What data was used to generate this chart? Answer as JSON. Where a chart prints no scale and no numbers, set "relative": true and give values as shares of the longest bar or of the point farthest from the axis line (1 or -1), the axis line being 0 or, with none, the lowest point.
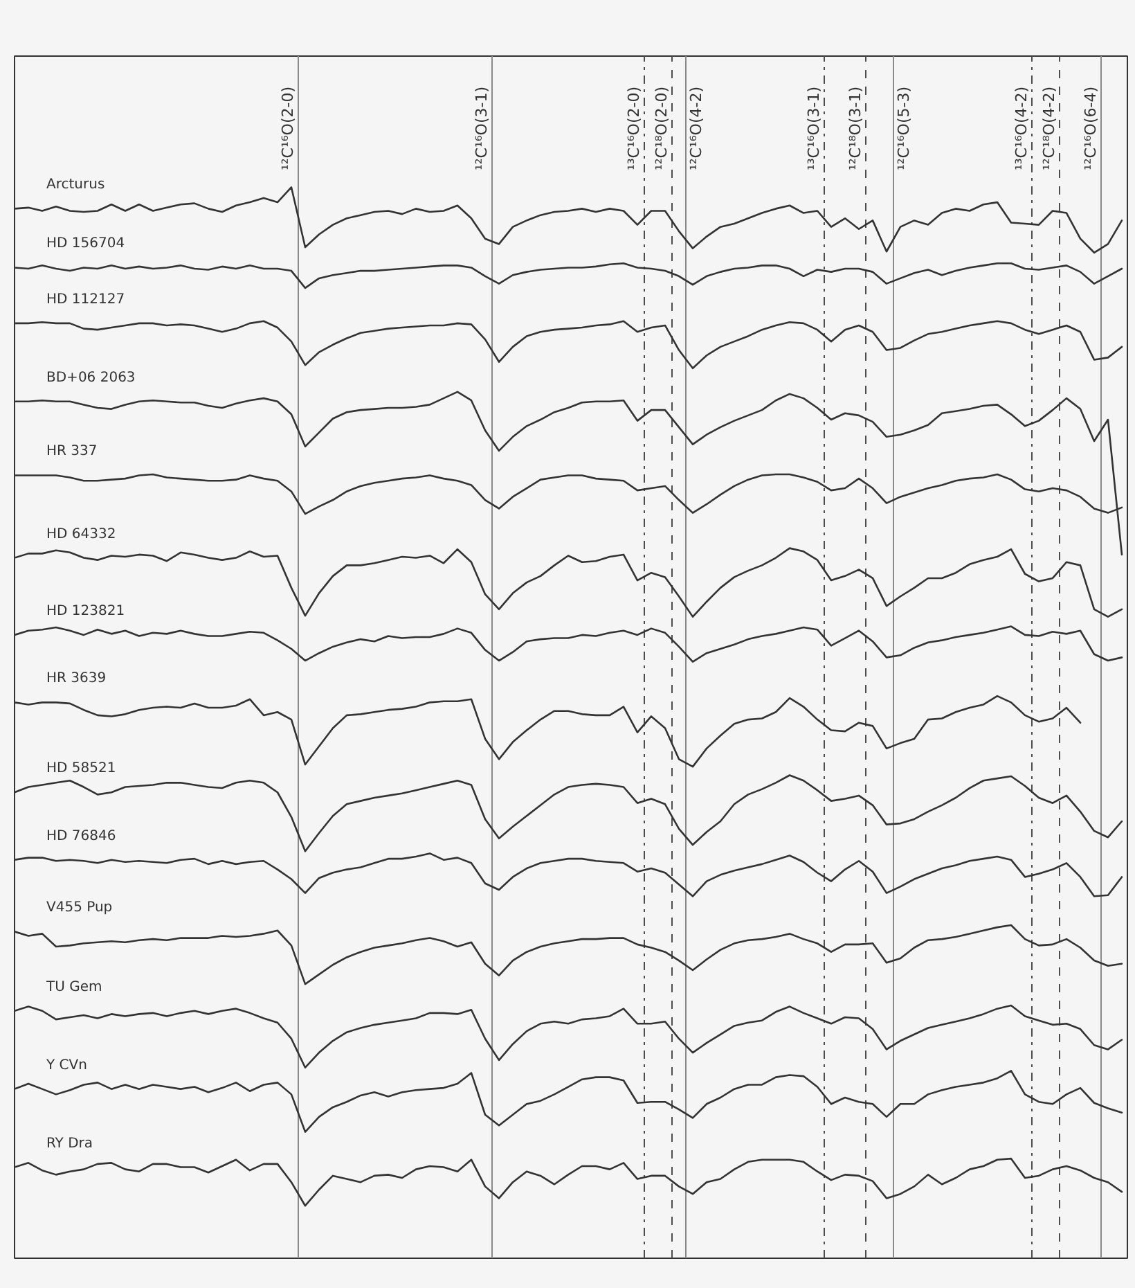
{
  "chart_data": {
    "type": "line",
    "relative": true,
    "grid": false,
    "line_style": "solid",
    "categories": [
      null,
      null,
      null,
      null,
      null,
      null,
      null,
      null,
      null,
      null,
      null,
      null,
      null,
      null,
      null,
      null,
      null,
      null,
      null,
      null,
      null,
      null,
      null,
      null,
      null,
      null,
      null,
      null,
      null,
      null,
      null,
      null,
      null,
      null,
      null,
      null,
      null,
      null,
      null,
      null,
      null,
      null,
      null,
      null,
      null,
      null,
      null,
      null,
      null,
      null,
      null,
      null,
      null,
      null,
      null,
      null,
      null,
      null,
      null,
      null,
      null,
      null,
      null,
      null,
      null,
      null,
      null,
      null,
      null,
      null,
      null,
      null,
      null,
      null,
      null,
      null,
      null,
      null,
      null,
      null,
      null
    ],
    "series": [
      {
        "name": "Arcturus",
        "color": "#333333",
        "values": [
          0.98,
          0.981,
          0.978,
          0.982,
          0.978,
          0.977,
          0.978,
          0.984,
          0.978,
          0.984,
          0.978,
          0.981,
          0.984,
          0.985,
          0.98,
          0.977,
          0.983,
          0.986,
          0.99,
          0.986,
          1.0,
          0.944,
          0.956,
          0.965,
          0.971,
          0.974,
          0.977,
          0.978,
          0.975,
          0.98,
          0.977,
          0.978,
          0.983,
          0.971,
          0.952,
          0.947,
          0.963,
          0.969,
          0.974,
          0.977,
          0.978,
          0.98,
          0.977,
          0.98,
          0.978,
          0.965,
          0.978,
          0.978,
          0.959,
          0.943,
          0.954,
          0.963,
          0.966,
          0.971,
          0.976,
          0.98,
          0.983,
          0.976,
          0.978,
          0.963,
          0.971,
          0.961,
          0.969,
          0.94,
          0.963,
          0.969,
          0.965,
          0.976,
          0.98,
          0.978,
          0.984,
          0.986,
          0.967,
          0.966,
          0.965,
          0.978,
          0.976,
          0.952,
          0.939,
          0.947,
          0.969
        ]
      },
      {
        "name": "HD 156704",
        "color": "#333333",
        "values": [
          0.925,
          0.924,
          0.927,
          0.924,
          0.922,
          0.925,
          0.924,
          0.927,
          0.924,
          0.926,
          0.924,
          0.925,
          0.927,
          0.924,
          0.923,
          0.926,
          0.924,
          0.927,
          0.924,
          0.924,
          0.922,
          0.906,
          0.915,
          0.918,
          0.92,
          0.922,
          0.922,
          0.923,
          0.924,
          0.925,
          0.926,
          0.927,
          0.927,
          0.925,
          0.917,
          0.91,
          0.918,
          0.921,
          0.923,
          0.924,
          0.925,
          0.925,
          0.926,
          0.928,
          0.929,
          0.925,
          0.924,
          0.922,
          0.917,
          0.909,
          0.917,
          0.921,
          0.924,
          0.925,
          0.927,
          0.927,
          0.924,
          0.917,
          0.923,
          0.921,
          0.924,
          0.924,
          0.921,
          0.91,
          0.915,
          0.92,
          0.923,
          0.918,
          0.922,
          0.925,
          0.927,
          0.929,
          0.929,
          0.924,
          0.923,
          0.925,
          0.927,
          0.921,
          0.91,
          0.917,
          0.924
        ]
      },
      {
        "name": "HD 112127",
        "color": "#333333",
        "values": [
          0.873,
          0.873,
          0.874,
          0.873,
          0.873,
          0.868,
          0.867,
          0.869,
          0.871,
          0.873,
          0.873,
          0.871,
          0.872,
          0.871,
          0.868,
          0.865,
          0.868,
          0.873,
          0.875,
          0.869,
          0.856,
          0.834,
          0.846,
          0.853,
          0.859,
          0.864,
          0.866,
          0.868,
          0.869,
          0.87,
          0.871,
          0.871,
          0.873,
          0.872,
          0.858,
          0.837,
          0.851,
          0.861,
          0.865,
          0.867,
          0.868,
          0.869,
          0.871,
          0.872,
          0.875,
          0.865,
          0.869,
          0.871,
          0.848,
          0.831,
          0.843,
          0.851,
          0.856,
          0.861,
          0.867,
          0.871,
          0.874,
          0.873,
          0.867,
          0.856,
          0.867,
          0.871,
          0.865,
          0.848,
          0.85,
          0.857,
          0.863,
          0.865,
          0.868,
          0.871,
          0.873,
          0.875,
          0.873,
          0.867,
          0.863,
          0.867,
          0.871,
          0.865,
          0.839,
          0.841,
          0.851
        ]
      },
      {
        "name": "BD+06 2063",
        "color": "#333333",
        "values": [
          0.8,
          0.8,
          0.801,
          0.8,
          0.8,
          0.797,
          0.794,
          0.793,
          0.797,
          0.8,
          0.801,
          0.8,
          0.799,
          0.799,
          0.796,
          0.794,
          0.798,
          0.801,
          0.803,
          0.8,
          0.788,
          0.758,
          0.771,
          0.784,
          0.79,
          0.792,
          0.793,
          0.794,
          0.794,
          0.795,
          0.797,
          0.803,
          0.809,
          0.801,
          0.773,
          0.754,
          0.767,
          0.777,
          0.783,
          0.79,
          0.794,
          0.799,
          0.8,
          0.8,
          0.801,
          0.782,
          0.792,
          0.792,
          0.776,
          0.76,
          0.769,
          0.776,
          0.782,
          0.787,
          0.792,
          0.801,
          0.807,
          0.803,
          0.794,
          0.783,
          0.789,
          0.787,
          0.781,
          0.767,
          0.769,
          0.773,
          0.778,
          0.789,
          0.791,
          0.793,
          0.796,
          0.797,
          0.788,
          0.777,
          0.782,
          0.792,
          0.803,
          0.793,
          0.763,
          0.783,
          0.657
        ]
      },
      {
        "name": "HR 337",
        "color": "#333333",
        "values": [
          0.731,
          0.731,
          0.731,
          0.731,
          0.729,
          0.726,
          0.726,
          0.727,
          0.728,
          0.731,
          0.732,
          0.729,
          0.728,
          0.727,
          0.726,
          0.726,
          0.727,
          0.731,
          0.728,
          0.726,
          0.716,
          0.695,
          0.702,
          0.708,
          0.716,
          0.721,
          0.724,
          0.726,
          0.728,
          0.729,
          0.731,
          0.728,
          0.726,
          0.722,
          0.708,
          0.7,
          0.711,
          0.719,
          0.727,
          0.729,
          0.731,
          0.731,
          0.728,
          0.727,
          0.726,
          0.717,
          0.719,
          0.721,
          0.708,
          0.696,
          0.704,
          0.713,
          0.721,
          0.727,
          0.731,
          0.732,
          0.732,
          0.729,
          0.725,
          0.717,
          0.719,
          0.728,
          0.719,
          0.705,
          0.711,
          0.715,
          0.719,
          0.722,
          0.726,
          0.728,
          0.729,
          0.732,
          0.727,
          0.718,
          0.716,
          0.719,
          0.717,
          0.711,
          0.7,
          0.696,
          0.701
        ]
      },
      {
        "name": "HD 64332",
        "color": "#333333",
        "values": [
          0.654,
          0.658,
          0.658,
          0.661,
          0.659,
          0.654,
          0.652,
          0.656,
          0.655,
          0.657,
          0.656,
          0.651,
          0.659,
          0.657,
          0.654,
          0.652,
          0.654,
          0.66,
          0.655,
          0.656,
          0.626,
          0.6,
          0.621,
          0.637,
          0.647,
          0.647,
          0.649,
          0.652,
          0.655,
          0.654,
          0.656,
          0.649,
          0.662,
          0.65,
          0.62,
          0.606,
          0.621,
          0.631,
          0.637,
          0.647,
          0.656,
          0.65,
          0.651,
          0.655,
          0.657,
          0.633,
          0.64,
          0.636,
          0.618,
          0.599,
          0.613,
          0.626,
          0.636,
          0.642,
          0.647,
          0.654,
          0.663,
          0.66,
          0.652,
          0.633,
          0.637,
          0.643,
          0.635,
          0.609,
          0.618,
          0.626,
          0.635,
          0.635,
          0.64,
          0.648,
          0.652,
          0.655,
          0.662,
          0.639,
          0.632,
          0.635,
          0.65,
          0.647,
          0.606,
          0.599,
          0.606
        ]
      },
      {
        "name": "HD 123821",
        "color": "#333333",
        "values": [
          0.582,
          0.586,
          0.587,
          0.589,
          0.586,
          0.582,
          0.587,
          0.583,
          0.586,
          0.581,
          0.584,
          0.583,
          0.586,
          0.583,
          0.581,
          0.581,
          0.583,
          0.585,
          0.584,
          0.577,
          0.569,
          0.558,
          0.565,
          0.571,
          0.575,
          0.578,
          0.576,
          0.581,
          0.579,
          0.58,
          0.58,
          0.583,
          0.588,
          0.584,
          0.568,
          0.558,
          0.566,
          0.576,
          0.578,
          0.579,
          0.579,
          0.582,
          0.581,
          0.584,
          0.586,
          0.582,
          0.588,
          0.584,
          0.571,
          0.557,
          0.565,
          0.569,
          0.573,
          0.578,
          0.581,
          0.583,
          0.586,
          0.589,
          0.587,
          0.572,
          0.579,
          0.586,
          0.576,
          0.561,
          0.563,
          0.57,
          0.575,
          0.577,
          0.58,
          0.582,
          0.584,
          0.587,
          0.59,
          0.582,
          0.581,
          0.585,
          0.583,
          0.586,
          0.564,
          0.558,
          0.561
        ]
      },
      {
        "name": "HR 3639",
        "color": "#333333",
        "values": [
          0.519,
          0.517,
          0.519,
          0.519,
          0.518,
          0.512,
          0.507,
          0.506,
          0.508,
          0.512,
          0.514,
          0.515,
          0.514,
          0.518,
          0.514,
          0.514,
          0.516,
          0.522,
          0.507,
          0.51,
          0.503,
          0.461,
          0.478,
          0.495,
          0.507,
          0.508,
          0.51,
          0.512,
          0.513,
          0.515,
          0.519,
          0.52,
          0.52,
          0.522,
          0.485,
          0.466,
          0.482,
          0.493,
          0.503,
          0.511,
          0.511,
          0.508,
          0.507,
          0.507,
          0.515,
          0.491,
          0.506,
          0.495,
          0.466,
          0.459,
          0.476,
          0.488,
          0.499,
          0.503,
          0.504,
          0.51,
          0.523,
          0.515,
          0.503,
          0.493,
          0.492,
          0.5,
          0.497,
          0.476,
          0.481,
          0.485,
          0.503,
          0.504,
          0.51,
          0.514,
          0.517,
          0.525,
          0.519,
          0.507,
          0.501,
          0.504,
          0.514,
          0.5,
          null,
          null,
          null
        ]
      },
      {
        "name": "HD 58521",
        "color": "#333333",
        "values": [
          0.435,
          0.44,
          0.442,
          0.444,
          0.446,
          0.44,
          0.433,
          0.435,
          0.44,
          0.441,
          0.442,
          0.444,
          0.444,
          0.442,
          0.44,
          0.439,
          0.444,
          0.446,
          0.444,
          0.435,
          0.412,
          0.38,
          0.397,
          0.413,
          0.424,
          0.427,
          0.43,
          0.432,
          0.434,
          0.437,
          0.44,
          0.443,
          0.446,
          0.442,
          0.41,
          0.392,
          0.403,
          0.413,
          0.423,
          0.433,
          0.44,
          0.442,
          0.443,
          0.442,
          0.44,
          0.425,
          0.429,
          0.424,
          0.401,
          0.386,
          0.398,
          0.408,
          0.424,
          0.433,
          0.438,
          0.444,
          0.451,
          0.446,
          0.437,
          0.427,
          0.429,
          0.432,
          0.423,
          0.405,
          0.406,
          0.41,
          0.417,
          0.423,
          0.43,
          0.439,
          0.446,
          0.448,
          0.45,
          0.441,
          0.43,
          0.425,
          0.432,
          0.417,
          0.399,
          0.393,
          0.408
        ]
      },
      {
        "name": "HD 76846",
        "color": "#333333",
        "values": [
          0.372,
          0.374,
          0.374,
          0.371,
          0.372,
          0.371,
          0.369,
          0.372,
          0.37,
          0.371,
          0.37,
          0.369,
          0.372,
          0.373,
          0.368,
          0.371,
          0.368,
          0.37,
          0.371,
          0.363,
          0.354,
          0.341,
          0.355,
          0.36,
          0.363,
          0.365,
          0.369,
          0.373,
          0.373,
          0.375,
          0.378,
          0.372,
          0.374,
          0.369,
          0.35,
          0.344,
          0.356,
          0.364,
          0.369,
          0.371,
          0.373,
          0.373,
          0.371,
          0.37,
          0.369,
          0.361,
          0.364,
          0.36,
          0.349,
          0.338,
          0.352,
          0.358,
          0.362,
          0.365,
          0.368,
          0.372,
          0.376,
          0.37,
          0.36,
          0.352,
          0.363,
          0.371,
          0.361,
          0.341,
          0.347,
          0.354,
          0.359,
          0.364,
          0.367,
          0.371,
          0.373,
          0.375,
          0.372,
          0.356,
          0.359,
          0.363,
          0.369,
          0.356,
          0.338,
          0.339,
          0.356
        ]
      },
      {
        "name": "V455 Pup",
        "color": "#333333",
        "values": [
          0.305,
          0.301,
          0.303,
          0.291,
          0.292,
          0.294,
          0.295,
          0.296,
          0.295,
          0.297,
          0.298,
          0.297,
          0.299,
          0.299,
          0.299,
          0.301,
          0.3,
          0.301,
          0.303,
          0.306,
          0.292,
          0.256,
          0.265,
          0.274,
          0.281,
          0.286,
          0.29,
          0.292,
          0.294,
          0.297,
          0.299,
          0.296,
          0.291,
          0.295,
          0.275,
          0.264,
          0.278,
          0.286,
          0.291,
          0.294,
          0.296,
          0.298,
          0.298,
          0.299,
          0.299,
          0.293,
          0.29,
          0.286,
          0.278,
          0.269,
          0.279,
          0.288,
          0.294,
          0.297,
          0.298,
          0.3,
          0.303,
          0.298,
          0.294,
          0.286,
          0.293,
          0.293,
          0.294,
          0.276,
          0.28,
          0.29,
          0.297,
          0.298,
          0.3,
          0.303,
          0.306,
          0.309,
          0.311,
          0.298,
          0.292,
          0.293,
          0.298,
          0.29,
          0.278,
          0.273,
          0.275
        ]
      },
      {
        "name": "TU Gem",
        "color": "#333333",
        "values": [
          0.231,
          0.235,
          0.231,
          0.223,
          0.225,
          0.227,
          0.224,
          0.228,
          0.226,
          0.228,
          0.229,
          0.226,
          0.229,
          0.231,
          0.228,
          0.231,
          0.233,
          0.229,
          0.224,
          0.22,
          0.205,
          0.178,
          0.192,
          0.203,
          0.211,
          0.215,
          0.218,
          0.22,
          0.222,
          0.224,
          0.229,
          0.229,
          0.228,
          0.232,
          0.205,
          0.185,
          0.2,
          0.212,
          0.219,
          0.221,
          0.219,
          0.223,
          0.224,
          0.226,
          0.233,
          0.219,
          0.219,
          0.221,
          0.205,
          0.192,
          0.201,
          0.209,
          0.217,
          0.22,
          0.222,
          0.23,
          0.235,
          0.229,
          0.224,
          0.219,
          0.225,
          0.224,
          0.214,
          0.195,
          0.203,
          0.209,
          0.215,
          0.218,
          0.221,
          0.224,
          0.228,
          0.233,
          0.236,
          0.226,
          0.222,
          0.218,
          0.219,
          0.214,
          0.199,
          0.195,
          0.204
        ]
      },
      {
        "name": "Y CVn",
        "color": "#333333",
        "values": [
          0.158,
          0.163,
          0.158,
          0.153,
          0.157,
          0.162,
          0.164,
          0.158,
          0.162,
          0.158,
          0.162,
          0.16,
          0.158,
          0.16,
          0.155,
          0.159,
          0.164,
          0.156,
          0.162,
          0.164,
          0.153,
          0.118,
          0.132,
          0.141,
          0.146,
          0.152,
          0.155,
          0.151,
          0.155,
          0.157,
          0.158,
          0.159,
          0.163,
          0.173,
          0.134,
          0.124,
          0.134,
          0.144,
          0.147,
          0.153,
          0.16,
          0.167,
          0.169,
          0.169,
          0.166,
          0.145,
          0.146,
          0.146,
          0.139,
          0.131,
          0.144,
          0.15,
          0.158,
          0.162,
          0.162,
          0.169,
          0.171,
          0.17,
          0.16,
          0.144,
          0.15,
          0.146,
          0.144,
          0.132,
          0.144,
          0.144,
          0.153,
          0.157,
          0.16,
          0.162,
          0.164,
          0.168,
          0.175,
          0.153,
          0.146,
          0.144,
          0.153,
          0.159,
          0.145,
          0.14,
          0.136
        ]
      },
      {
        "name": "RY Dra",
        "color": "#333333",
        "values": [
          0.085,
          0.089,
          0.082,
          0.078,
          0.081,
          0.083,
          0.088,
          0.089,
          0.083,
          0.081,
          0.088,
          0.088,
          0.085,
          0.085,
          0.08,
          0.086,
          0.092,
          0.082,
          0.088,
          0.088,
          0.071,
          0.049,
          0.064,
          0.077,
          0.074,
          0.071,
          0.077,
          0.078,
          0.075,
          0.083,
          0.086,
          0.085,
          0.081,
          0.092,
          0.067,
          0.056,
          0.071,
          0.081,
          0.077,
          0.069,
          0.078,
          0.086,
          0.086,
          0.083,
          0.089,
          0.074,
          0.077,
          0.077,
          0.067,
          0.06,
          0.071,
          0.074,
          0.083,
          0.09,
          0.092,
          0.092,
          0.092,
          0.09,
          0.081,
          0.073,
          0.078,
          0.077,
          0.072,
          0.056,
          0.06,
          0.067,
          0.078,
          0.069,
          0.075,
          0.083,
          0.086,
          0.092,
          0.093,
          0.075,
          0.077,
          0.083,
          0.086,
          0.082,
          0.075,
          0.071,
          0.062
        ]
      }
    ],
    "annotations": [
      "¹²C¹⁶O(2-0)",
      "¹²C¹⁶O(3-1)",
      "¹³C¹⁶O(2-0)",
      "¹²C¹⁸O(2-0)",
      "¹²C¹⁶O(4-2)",
      "¹³C¹⁶O(3-1)",
      "¹²C¹⁸O(3-1)",
      "¹²C¹⁶O(5-3)",
      "¹³C¹⁶O(4-2)",
      "¹²C¹⁸O(4-2)",
      "¹²C¹⁶O(6-4)"
    ]
  }
}
